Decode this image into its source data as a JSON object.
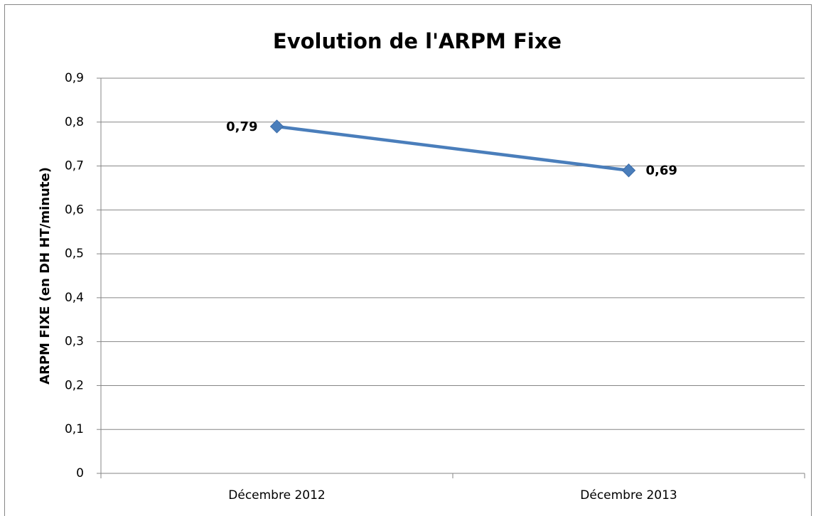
{
  "chart_data": {
    "type": "line",
    "title": "Evolution de l'ARPM Fixe",
    "y_label": "ARPM FIXE (en DH HT/minute)",
    "categories": [
      "Décembre 2012",
      "Décembre 2013"
    ],
    "series": [
      {
        "name": "ARPM Fixe",
        "color": "#4a7ebb",
        "values": [
          0.79,
          0.69
        ],
        "value_labels": [
          "0,79",
          "0,69"
        ]
      }
    ],
    "ylim": [
      0,
      0.9
    ],
    "yticks": [
      0,
      {
        "value": 0.1,
        "label": "0,1"
      },
      {
        "value": 0.2,
        "label": "0,2"
      },
      {
        "value": 0.3,
        "label": "0,3"
      },
      {
        "value": 0.4,
        "label": "0,4"
      },
      {
        "value": 0.5,
        "label": "0,5"
      },
      {
        "value": 0.6,
        "label": "0,6"
      },
      {
        "value": 0.7,
        "label": "0,7"
      },
      {
        "value": 0.8,
        "label": "0,8"
      },
      {
        "value": 0.9,
        "label": "0,9"
      }
    ],
    "grid": true
  }
}
